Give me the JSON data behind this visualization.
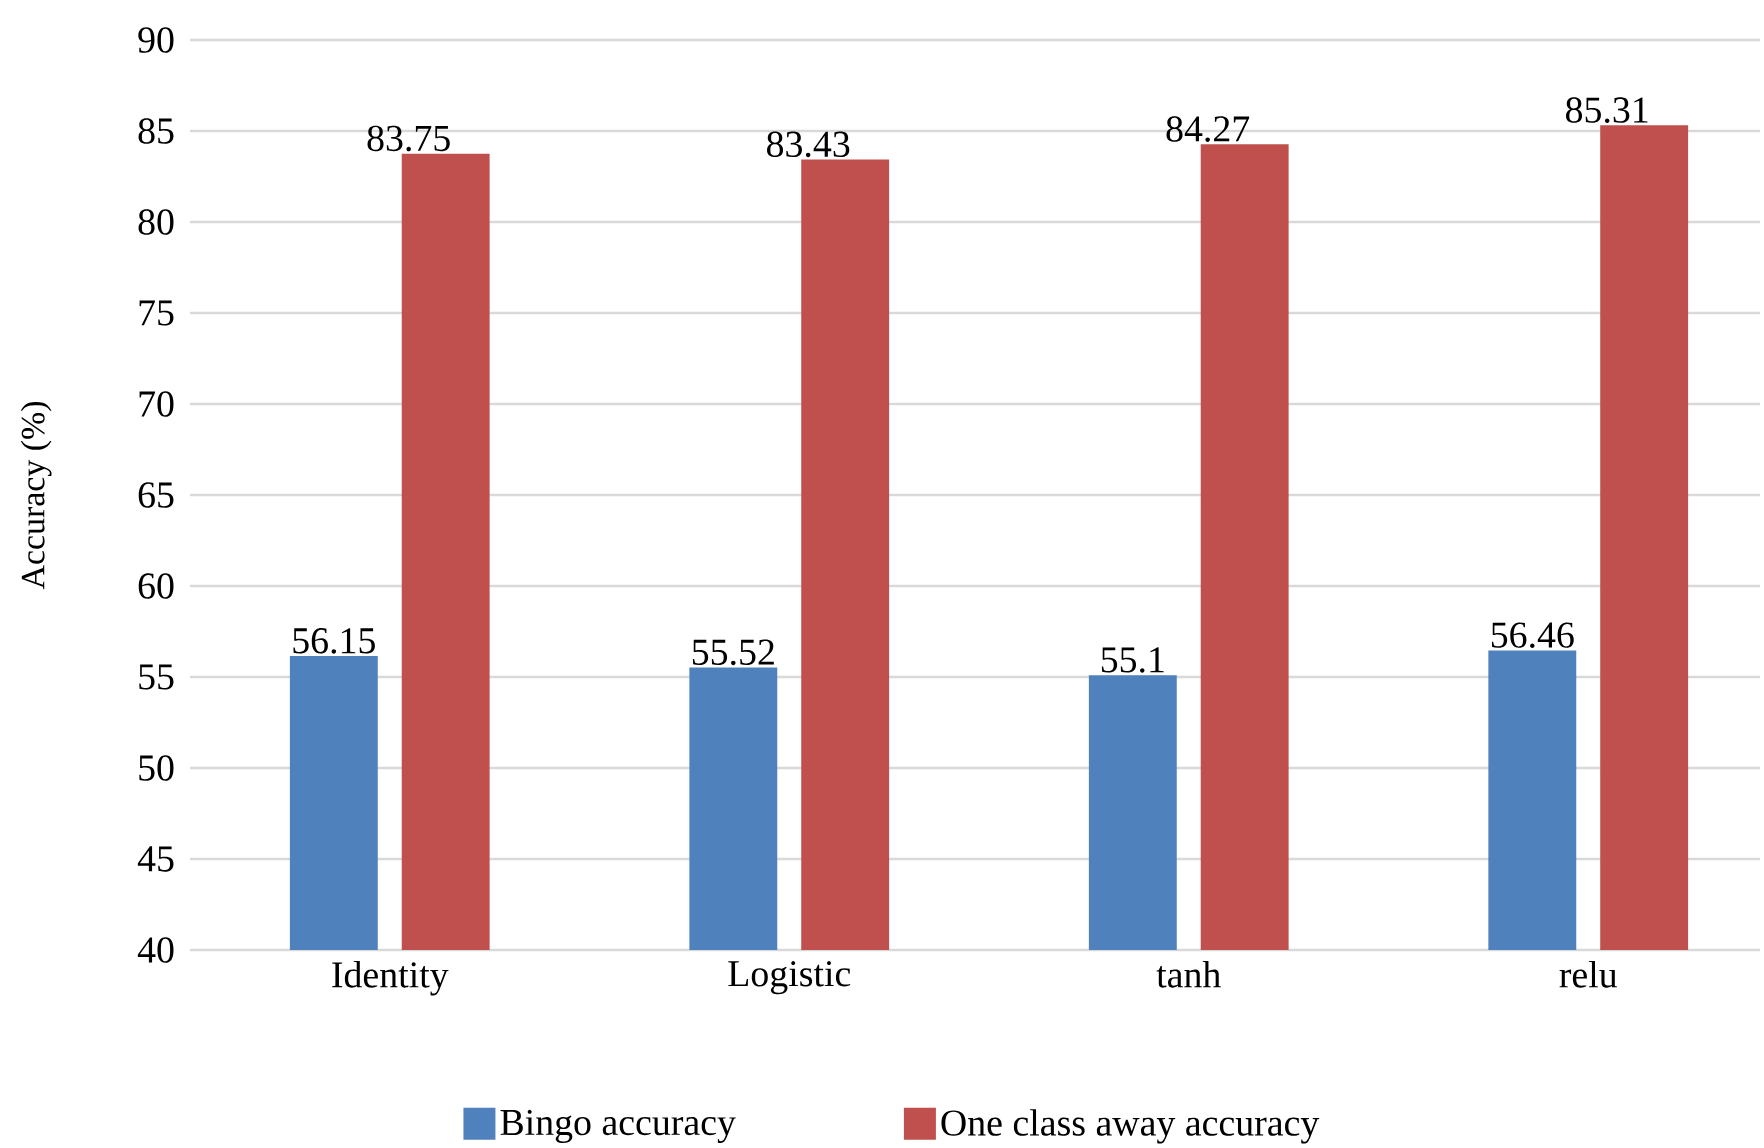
{
  "chart_data": {
    "type": "bar",
    "ylabel": "Accuracy (%)",
    "categories": [
      "Identity",
      "Logistic",
      "tanh",
      "relu"
    ],
    "series": [
      {
        "name": "Bingo accuracy",
        "color": "#4f81bd",
        "values": [
          56.15,
          55.52,
          55.1,
          56.46
        ]
      },
      {
        "name": "One class away accuracy",
        "color": "#c0504d",
        "values": [
          83.75,
          83.43,
          84.27,
          85.31
        ]
      }
    ],
    "ylim": [
      40,
      90
    ],
    "yticks": [
      40,
      45,
      50,
      55,
      60,
      65,
      70,
      75,
      80,
      85,
      90
    ],
    "grid": "y",
    "legend": "bottom",
    "data_labels": true
  }
}
